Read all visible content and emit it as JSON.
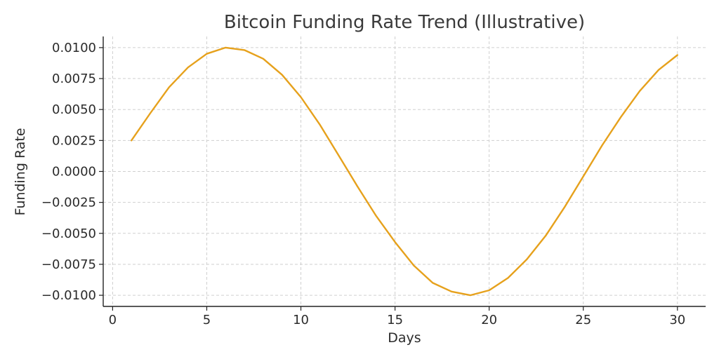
{
  "chart_data": {
    "type": "line",
    "title": "Bitcoin Funding Rate Trend (Illustrative)",
    "xlabel": "Days",
    "ylabel": "Funding Rate",
    "xlim": [
      -0.5,
      31.5
    ],
    "ylim": [
      -0.0109,
      0.0109
    ],
    "xticks": [
      0,
      5,
      10,
      15,
      20,
      25,
      30
    ],
    "xtick_labels": [
      "0",
      "5",
      "10",
      "15",
      "20",
      "25",
      "30"
    ],
    "yticks": [
      0.01,
      0.0075,
      0.005,
      0.0025,
      0,
      -0.0025,
      -0.005,
      -0.0075,
      -0.01
    ],
    "ytick_labels": [
      "0.0100",
      "0.0075",
      "0.0050",
      "0.0025",
      "0.0000",
      "−0.0025",
      "−0.0050",
      "−0.0075",
      "−0.0100"
    ],
    "grid": true,
    "series": [
      {
        "color": "#e6a11c",
        "x": [
          1,
          2,
          3,
          4,
          5,
          6,
          7,
          8,
          9,
          10,
          11,
          12,
          13,
          14,
          15,
          16,
          17,
          18,
          19,
          20,
          21,
          22,
          23,
          24,
          25,
          26,
          27,
          28,
          29,
          30
        ],
        "y": [
          0.0025,
          0.0047,
          0.0068,
          0.0084,
          0.0095,
          0.01,
          0.0098,
          0.0091,
          0.0078,
          0.006,
          0.0038,
          0.0013,
          -0.0012,
          -0.0036,
          -0.0057,
          -0.0076,
          -0.009,
          -0.0097,
          -0.01,
          -0.0096,
          -0.0086,
          -0.0071,
          -0.0052,
          -0.0029,
          -0.0004,
          0.0021,
          0.0044,
          0.0065,
          0.0082,
          0.0094
        ]
      }
    ]
  }
}
